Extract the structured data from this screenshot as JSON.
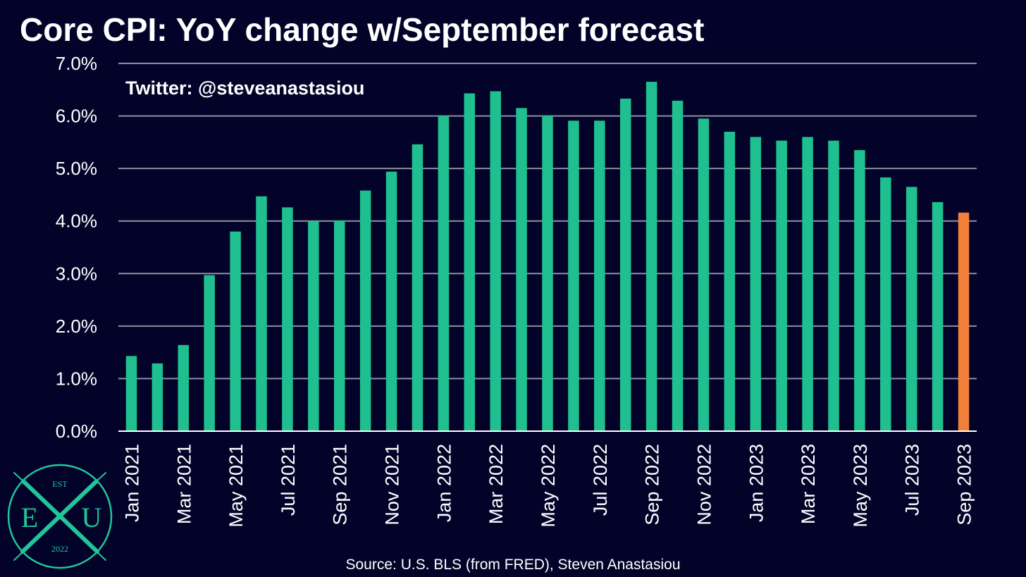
{
  "chart_data": {
    "type": "bar",
    "title": "Core CPI: YoY change w/September forecast",
    "annotation": "Twitter: @steveanastasiou",
    "source": "Source: U.S. BLS (from FRED), Steven Anastasiou",
    "categories": [
      "Jan 2021",
      "Feb 2021",
      "Mar 2021",
      "Apr 2021",
      "May 2021",
      "Jun 2021",
      "Jul 2021",
      "Aug 2021",
      "Sep 2021",
      "Oct 2021",
      "Nov 2021",
      "Dec 2021",
      "Jan 2022",
      "Feb 2022",
      "Mar 2022",
      "Apr 2022",
      "May 2022",
      "Jun 2022",
      "Jul 2022",
      "Aug 2022",
      "Sep 2022",
      "Oct 2022",
      "Nov 2022",
      "Dec 2022",
      "Jan 2023",
      "Feb 2023",
      "Mar 2023",
      "Apr 2023",
      "May 2023",
      "Jun 2023",
      "Jul 2023",
      "Aug 2023",
      "Sep 2023"
    ],
    "values": [
      1.43,
      1.29,
      1.64,
      2.97,
      3.8,
      4.47,
      4.26,
      4.0,
      4.01,
      4.58,
      4.94,
      5.46,
      6.0,
      6.43,
      6.47,
      6.15,
      6.01,
      5.91,
      5.91,
      6.33,
      6.65,
      6.29,
      5.95,
      5.7,
      5.6,
      5.53,
      5.6,
      5.53,
      5.35,
      4.83,
      4.65,
      4.36,
      4.16
    ],
    "forecast_index": 32,
    "ylim": [
      0,
      7
    ],
    "yticks": [
      "0.0%",
      "1.0%",
      "2.0%",
      "3.0%",
      "4.0%",
      "5.0%",
      "6.0%",
      "7.0%"
    ],
    "xtick_labels": [
      "Jan 2021",
      "",
      "Mar 2021",
      "",
      "May 2021",
      "",
      "Jul 2021",
      "",
      "Sep 2021",
      "",
      "Nov 2021",
      "",
      "Jan 2022",
      "",
      "Mar 2022",
      "",
      "May 2022",
      "",
      "Jul 2022",
      "",
      "Sep 2022",
      "",
      "Nov 2022",
      "",
      "Jan 2023",
      "",
      "Mar 2023",
      "",
      "May 2023",
      "",
      "Jul 2023",
      "",
      "Sep 2023"
    ],
    "xlabel": "",
    "ylabel": "",
    "grid": true,
    "legend": "none",
    "colors": {
      "background": "#03032a",
      "bar": "#1fbf8f",
      "forecast_bar": "#f07f3a",
      "grid": "#8e8e9e",
      "text": "#ffffff"
    }
  },
  "logo": {
    "top": "EST",
    "left": "E",
    "right": "U",
    "bottom": "2022",
    "icon": "crossed-swords-icon",
    "color": "#22c59a"
  }
}
